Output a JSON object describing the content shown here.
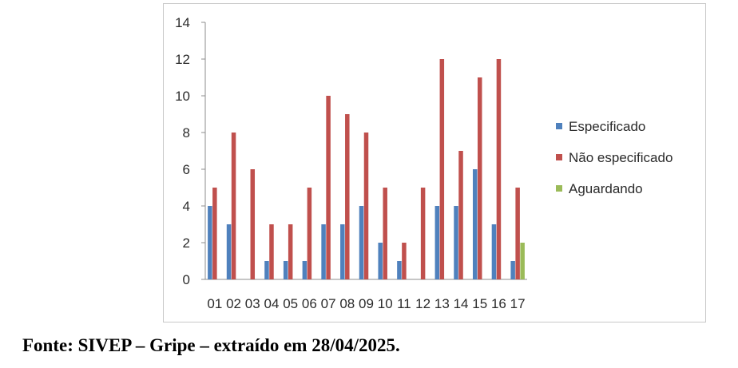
{
  "chart_data": {
    "type": "bar",
    "categories": [
      "01",
      "02",
      "03",
      "04",
      "05",
      "06",
      "07",
      "08",
      "09",
      "10",
      "11",
      "12",
      "13",
      "14",
      "15",
      "16",
      "17"
    ],
    "series": [
      {
        "name": "Especificado",
        "color": "#4F81BD",
        "values": [
          4,
          3,
          0,
          1,
          1,
          1,
          3,
          3,
          4,
          2,
          1,
          0,
          4,
          4,
          6,
          3,
          1
        ]
      },
      {
        "name": "Não especificado",
        "color": "#C0504D",
        "values": [
          5,
          8,
          6,
          3,
          3,
          5,
          10,
          9,
          8,
          5,
          2,
          5,
          12,
          7,
          11,
          12,
          5
        ]
      },
      {
        "name": "Aguardando",
        "color": "#9BBB59",
        "values": [
          0,
          0,
          0,
          0,
          0,
          0,
          0,
          0,
          0,
          0,
          0,
          0,
          0,
          0,
          0,
          0,
          2
        ]
      }
    ],
    "ylim": [
      0,
      14
    ],
    "yticks": [
      "0",
      "2",
      "4",
      "6",
      "8",
      "10",
      "12",
      "14"
    ],
    "grid": false,
    "legend": "right"
  },
  "source_note": "Fonte: SIVEP – Gripe – extraído em 28/04/2025."
}
